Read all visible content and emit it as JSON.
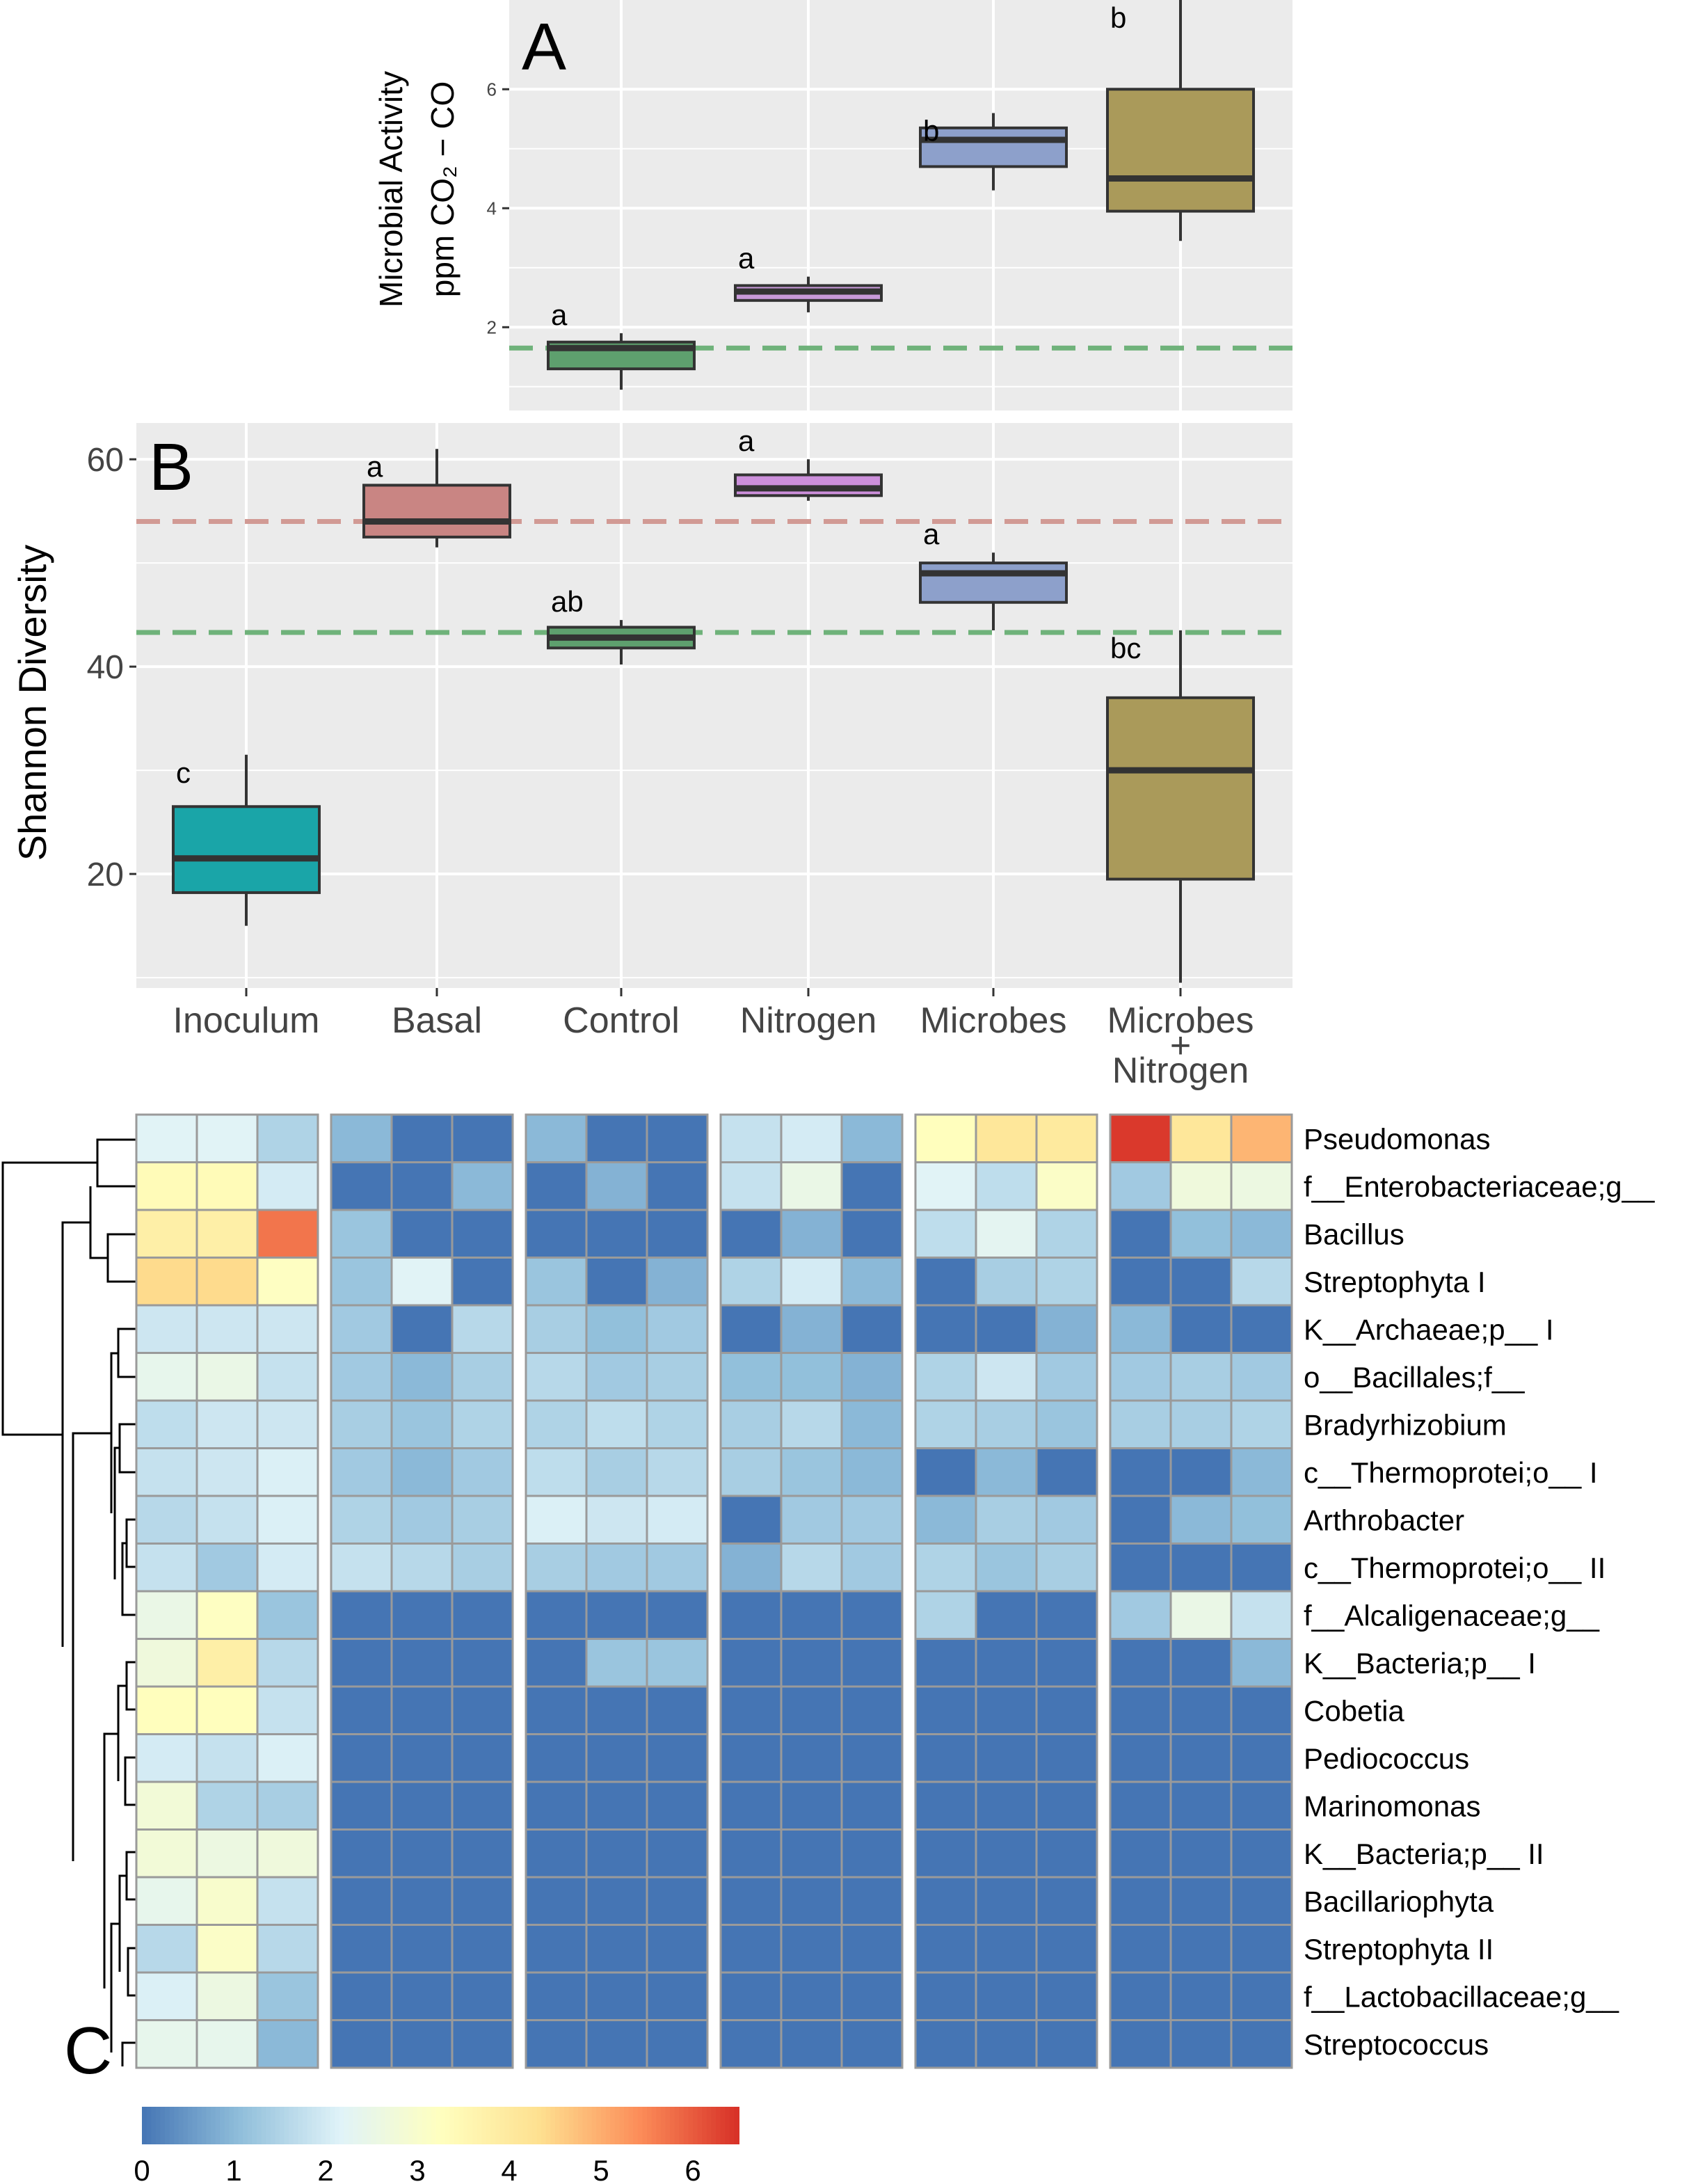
{
  "chart_data": [
    {
      "panel": "A",
      "type": "box",
      "title": "",
      "xlabel": "",
      "ylabel": [
        "Microbial Activity",
        "ppm CO₂ − CO"
      ],
      "ylim": [
        0.6,
        7.5
      ],
      "yticks": [
        2,
        4,
        6
      ],
      "grid": true,
      "reference_line": {
        "value": 1.65,
        "color": "#6fb27a"
      },
      "boxes": [
        {
          "group": "Control",
          "color": "#5ea06e",
          "min": 0.95,
          "q1": 1.3,
          "median": 1.65,
          "q3": 1.75,
          "max": 1.9,
          "letter": "a"
        },
        {
          "group": "Nitrogen",
          "color": "#c89ad9",
          "min": 2.25,
          "q1": 2.45,
          "median": 2.6,
          "q3": 2.7,
          "max": 2.85,
          "letter": "a"
        },
        {
          "group": "Microbes",
          "color": "#8da0cb",
          "min": 4.3,
          "q1": 4.7,
          "median": 5.15,
          "q3": 5.35,
          "max": 5.6,
          "letter": "b"
        },
        {
          "group": "Microbes + Nitrogen",
          "color": "#aa9a5a",
          "min": 3.45,
          "q1": 3.95,
          "median": 4.5,
          "q3": 6.0,
          "max": 7.5,
          "letter": "b"
        }
      ]
    },
    {
      "panel": "B",
      "type": "box",
      "title": "",
      "xlabel": "",
      "ylabel": "Shannon Diversity",
      "ylim": [
        9,
        63.5
      ],
      "yticks": [
        20,
        40,
        60
      ],
      "categories": [
        "Inoculum",
        "Basal",
        "Control",
        "Nitrogen",
        "Microbes",
        "Microbes\n+\nNitrogen"
      ],
      "category_lines": [
        "Microbes",
        "+",
        "Nitrogen"
      ],
      "grid": true,
      "reference_lines": [
        {
          "value": 54.0,
          "color": "#d19a94"
        },
        {
          "value": 43.3,
          "color": "#6fb27a"
        }
      ],
      "boxes": [
        {
          "group": "Inoculum",
          "color": "#1aa5a8",
          "min": 15.0,
          "q1": 18.2,
          "median": 21.5,
          "q3": 26.5,
          "max": 31.5,
          "letter": "c"
        },
        {
          "group": "Basal",
          "color": "#c98583",
          "min": 51.5,
          "q1": 52.5,
          "median": 54.0,
          "q3": 57.5,
          "max": 61.0,
          "letter": "a"
        },
        {
          "group": "Control",
          "color": "#5ea06e",
          "min": 40.2,
          "q1": 41.8,
          "median": 42.8,
          "q3": 43.8,
          "max": 44.5,
          "letter": "ab"
        },
        {
          "group": "Nitrogen",
          "color": "#cc8fdb",
          "min": 56.0,
          "q1": 56.5,
          "median": 57.2,
          "q3": 58.5,
          "max": 60.0,
          "letter": "a"
        },
        {
          "group": "Microbes",
          "color": "#8da0cb",
          "min": 43.5,
          "q1": 46.2,
          "median": 49.0,
          "q3": 50.0,
          "max": 51.0,
          "letter": "a"
        },
        {
          "group": "Microbes + Nitrogen",
          "color": "#aa9a5a",
          "min": 9.5,
          "q1": 19.5,
          "median": 30.0,
          "q3": 37.0,
          "max": 43.5,
          "letter": "bc"
        }
      ]
    },
    {
      "panel": "C",
      "type": "heatmap",
      "title": "",
      "rows": [
        "Pseudomonas",
        "f__Enterobacteriaceae;g__",
        "Bacillus",
        "Streptophyta I",
        "K__Archaeae;p__ I",
        "o__Bacillales;f__",
        "Bradyrhizobium",
        "c__Thermoprotei;o__ I",
        "Arthrobacter",
        "c__Thermoprotei;o__ II",
        "f__Alcaligenaceae;g__",
        "K__Bacteria;p__ I",
        "Cobetia",
        "Pediococcus",
        "Marinomonas",
        "K__Bacteria;p__ II",
        "Bacillariophyta",
        "Streptophyta II",
        "f__Lactobacillaceae;g__",
        "Streptococcus"
      ],
      "column_groups": [
        "Inoculum",
        "Basal",
        "Control",
        "Nitrogen",
        "Microbes",
        "Microbes + Nitrogen"
      ],
      "columns_per_group": 3,
      "scale": {
        "min": 0,
        "max": 6.5,
        "ticks": [
          0,
          1,
          2,
          3,
          4,
          5,
          6
        ]
      },
      "colors": [
        "#4575b4",
        "#91bfdb",
        "#e0f3f8",
        "#ffffbf",
        "#fee090",
        "#fc8d59",
        "#d73027"
      ],
      "values": [
        [
          2.2,
          2.2,
          1.5,
          1.0,
          0.0,
          0.0,
          1.0,
          0.0,
          0.0,
          1.8,
          2.0,
          1.0,
          3.3,
          4.1,
          4.0,
          6.4,
          4.1,
          4.9
        ],
        [
          3.4,
          3.4,
          2.0,
          0.0,
          0.0,
          1.0,
          0.0,
          0.9,
          0.0,
          1.8,
          2.5,
          0.0,
          2.2,
          1.7,
          3.1,
          1.3,
          2.7,
          2.6
        ],
        [
          3.8,
          3.8,
          5.7,
          1.2,
          0.0,
          0.0,
          0.0,
          0.0,
          0.0,
          0.0,
          0.9,
          0.0,
          1.7,
          2.3,
          1.5,
          0.0,
          1.1,
          1.0
        ],
        [
          4.4,
          4.4,
          3.2,
          1.2,
          2.2,
          0.0,
          1.2,
          0.0,
          0.9,
          1.5,
          2.0,
          1.0,
          0.0,
          1.4,
          1.5,
          0.0,
          0.0,
          1.6
        ],
        [
          1.9,
          1.9,
          1.9,
          1.3,
          0.0,
          1.6,
          1.4,
          1.1,
          1.3,
          0.0,
          0.9,
          0.0,
          0.0,
          0.0,
          0.9,
          1.0,
          0.0,
          0.0
        ],
        [
          2.4,
          2.5,
          1.8,
          1.3,
          1.0,
          1.4,
          1.6,
          1.3,
          1.4,
          1.1,
          1.1,
          0.9,
          1.5,
          1.9,
          1.3,
          1.3,
          1.4,
          1.3
        ],
        [
          1.7,
          1.9,
          1.9,
          1.4,
          1.2,
          1.5,
          1.5,
          1.7,
          1.5,
          1.4,
          1.6,
          1.0,
          1.5,
          1.4,
          1.2,
          1.4,
          1.4,
          1.5
        ],
        [
          1.8,
          1.9,
          2.1,
          1.3,
          1.0,
          1.3,
          1.7,
          1.4,
          1.6,
          1.4,
          1.2,
          1.0,
          0.0,
          1.0,
          0.0,
          0.0,
          0.0,
          1.0
        ],
        [
          1.6,
          1.8,
          2.1,
          1.5,
          1.3,
          1.4,
          2.1,
          1.9,
          2.0,
          0.0,
          1.3,
          1.3,
          1.0,
          1.4,
          1.3,
          0.0,
          1.0,
          1.1
        ],
        [
          1.8,
          1.3,
          2.0,
          1.8,
          1.6,
          1.4,
          1.4,
          1.3,
          1.3,
          0.9,
          1.6,
          1.3,
          1.5,
          1.2,
          1.4,
          0.0,
          0.0,
          0.0
        ],
        [
          2.5,
          3.2,
          1.2,
          0.0,
          0.0,
          0.0,
          0.0,
          0.0,
          0.0,
          0.0,
          0.0,
          0.0,
          1.5,
          0.0,
          0.0,
          1.3,
          2.5,
          1.8
        ],
        [
          2.7,
          3.8,
          1.6,
          0.0,
          0.0,
          0.0,
          0.0,
          1.2,
          1.2,
          0.0,
          0.0,
          0.0,
          0.0,
          0.0,
          0.0,
          0.0,
          0.0,
          1.0
        ],
        [
          3.3,
          3.3,
          1.8,
          0.0,
          0.0,
          0.0,
          0.0,
          0.0,
          0.0,
          0.0,
          0.0,
          0.0,
          0.0,
          0.0,
          0.0,
          0.0,
          0.0,
          0.0
        ],
        [
          2.0,
          1.8,
          2.1,
          0.0,
          0.0,
          0.0,
          0.0,
          0.0,
          0.0,
          0.0,
          0.0,
          0.0,
          0.0,
          0.0,
          0.0,
          0.0,
          0.0,
          0.0
        ],
        [
          2.8,
          1.5,
          1.4,
          0.0,
          0.0,
          0.0,
          0.0,
          0.0,
          0.0,
          0.0,
          0.0,
          0.0,
          0.0,
          0.0,
          0.0,
          0.0,
          0.0,
          0.0
        ],
        [
          2.8,
          2.6,
          2.7,
          0.0,
          0.0,
          0.0,
          0.0,
          0.0,
          0.0,
          0.0,
          0.0,
          0.0,
          0.0,
          0.0,
          0.0,
          0.0,
          0.0,
          0.0
        ],
        [
          2.4,
          3.0,
          1.8,
          0.0,
          0.0,
          0.0,
          0.0,
          0.0,
          0.0,
          0.0,
          0.0,
          0.0,
          0.0,
          0.0,
          0.0,
          0.0,
          0.0,
          0.0
        ],
        [
          1.6,
          3.1,
          1.6,
          0.0,
          0.0,
          0.0,
          0.0,
          0.0,
          0.0,
          0.0,
          0.0,
          0.0,
          0.0,
          0.0,
          0.0,
          0.0,
          0.0,
          0.0
        ],
        [
          2.1,
          2.6,
          1.2,
          0.0,
          0.0,
          0.0,
          0.0,
          0.0,
          0.0,
          0.0,
          0.0,
          0.0,
          0.0,
          0.0,
          0.0,
          0.0,
          0.0,
          0.0
        ],
        [
          2.4,
          2.4,
          1.0,
          0.0,
          0.0,
          0.0,
          0.0,
          0.0,
          0.0,
          0.0,
          0.0,
          0.0,
          0.0,
          0.0,
          0.0,
          0.0,
          0.0,
          0.0
        ]
      ]
    }
  ],
  "colors": {
    "panel_bg": "#ebebeb",
    "grid": "#ffffff",
    "box_stroke": "#333333",
    "heat_border": "#9a9a9a"
  }
}
